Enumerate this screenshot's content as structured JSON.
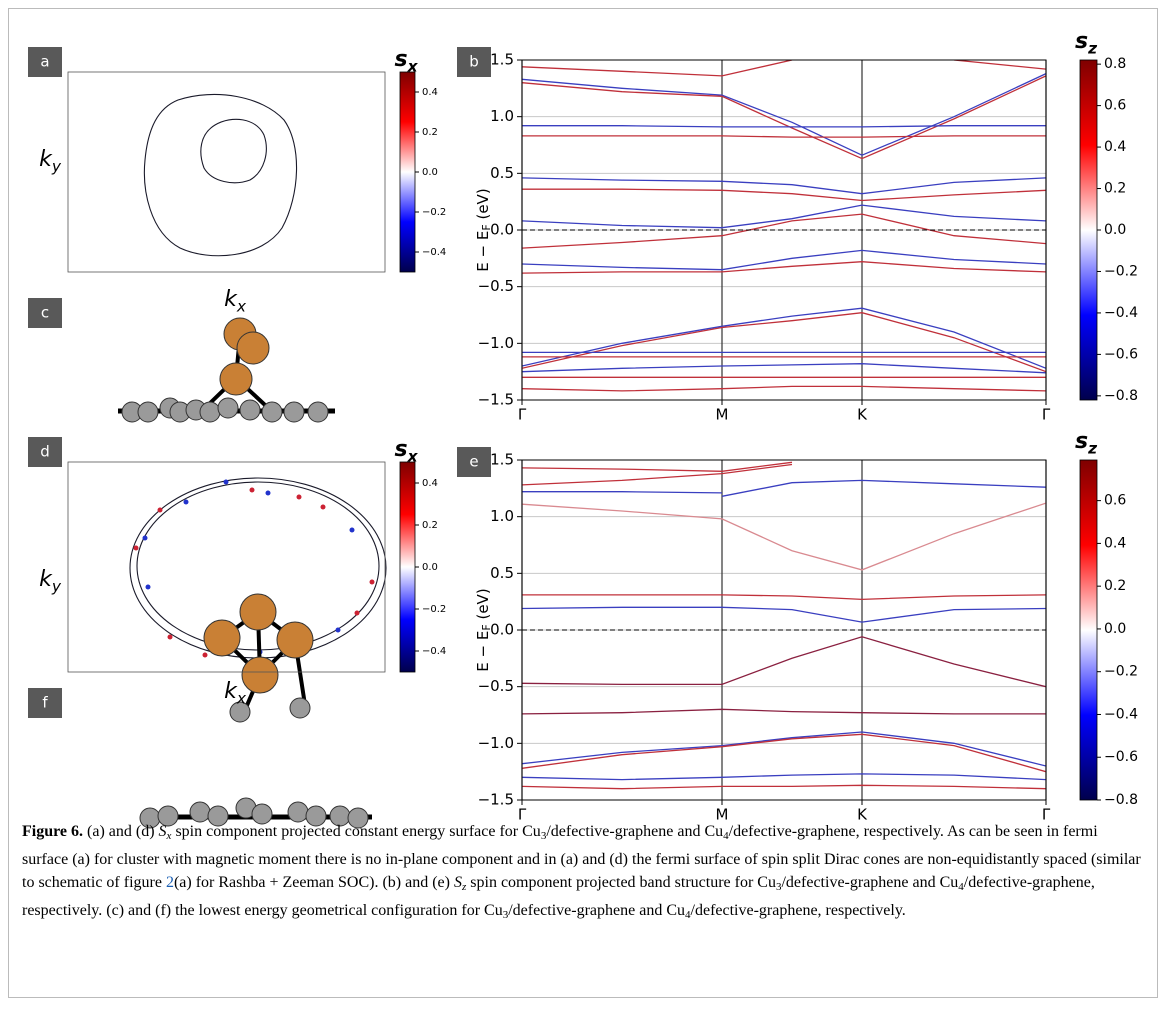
{
  "panel_labels": [
    "a",
    "b",
    "c",
    "d",
    "e",
    "f"
  ],
  "chart_data": [
    {
      "type": "fermi-surface",
      "xlabel": {
        "base": "k",
        "sub": "x"
      },
      "ylabel": {
        "base": "k",
        "sub": "y"
      },
      "colorbar": {
        "label": {
          "base": "s",
          "sub": "x"
        },
        "lim": [
          -0.5,
          0.5
        ],
        "ticks": [
          0.4,
          0.2,
          {
            "value": 0,
            "label": "0.0"
          },
          {
            "value": -0.2,
            "label": "−0.2"
          },
          {
            "value": -0.4,
            "label": "−0.4"
          }
        ]
      }
    },
    {
      "type": "line",
      "ylabel": [
        "E − E",
        "F",
        " (eV)"
      ],
      "x": [
        0,
        0.5,
        1,
        1.35,
        1.7,
        2.16,
        2.62
      ],
      "xlim": [
        0,
        2.62
      ],
      "xticks": [
        {
          "value": 0,
          "label": "Γ"
        },
        {
          "value": 1,
          "label": "M"
        },
        {
          "value": 1.7,
          "label": "K"
        },
        {
          "value": 2.62,
          "label": "Γ"
        }
      ],
      "ylim": [
        -1.5,
        1.5
      ],
      "yticks": [
        1.5,
        {
          "value": 1,
          "label": "1.0"
        },
        0.5,
        {
          "value": 0,
          "label": "0.0"
        },
        {
          "value": -0.5,
          "label": "−0.5"
        },
        {
          "value": -1,
          "label": "−1.0"
        },
        {
          "value": -1.5,
          "label": "−1.5"
        }
      ],
      "grid": true,
      "fermi_level": 0,
      "series": [
        {
          "color": "#c0303a",
          "values": [
            1.44,
            1.4,
            1.36,
            1.5,
            null,
            1.5,
            1.42
          ]
        },
        {
          "color": "#3a3fc0",
          "values": [
            1.33,
            1.25,
            1.19,
            0.95,
            0.66,
            1.0,
            1.38
          ]
        },
        {
          "color": "#c0303a",
          "values": [
            1.3,
            1.22,
            1.18,
            0.9,
            0.63,
            0.98,
            1.36
          ]
        },
        {
          "color": "#3a3fc0",
          "values": [
            0.92,
            0.92,
            0.91,
            0.91,
            0.91,
            0.92,
            0.92
          ]
        },
        {
          "color": "#c0303a",
          "values": [
            0.83,
            0.83,
            0.83,
            0.82,
            0.82,
            0.83,
            0.83
          ]
        },
        {
          "color": "#3a3fc0",
          "values": [
            0.46,
            0.44,
            0.43,
            0.4,
            0.32,
            0.42,
            0.46
          ]
        },
        {
          "color": "#c0303a",
          "values": [
            0.36,
            0.36,
            0.35,
            0.32,
            0.26,
            0.31,
            0.35
          ]
        },
        {
          "color": "#3a3fc0",
          "values": [
            0.08,
            0.04,
            0.02,
            0.1,
            0.22,
            0.12,
            0.08
          ]
        },
        {
          "color": "#c0303a",
          "values": [
            -0.16,
            -0.11,
            -0.05,
            0.08,
            0.14,
            -0.05,
            -0.12
          ]
        },
        {
          "color": "#3a3fc0",
          "values": [
            -0.3,
            -0.33,
            -0.35,
            -0.25,
            -0.18,
            -0.26,
            -0.3
          ]
        },
        {
          "color": "#c0303a",
          "values": [
            -0.38,
            -0.37,
            -0.37,
            -0.32,
            -0.28,
            -0.34,
            -0.37
          ]
        },
        {
          "color": "#3a3fc0",
          "values": [
            -1.2,
            -1.0,
            -0.85,
            -0.76,
            -0.69,
            -0.9,
            -1.22
          ]
        },
        {
          "color": "#c0303a",
          "values": [
            -1.22,
            -1.02,
            -0.86,
            -0.8,
            -0.73,
            -0.95,
            -1.25
          ]
        },
        {
          "color": "#3a3fc0",
          "values": [
            -1.08,
            -1.08,
            -1.08,
            -1.08,
            -1.08,
            -1.08,
            -1.08
          ]
        },
        {
          "color": "#c0303a",
          "values": [
            -1.12,
            -1.12,
            -1.12,
            -1.12,
            -1.12,
            -1.12,
            -1.12
          ]
        },
        {
          "color": "#3a3fc0",
          "values": [
            -1.25,
            -1.22,
            -1.2,
            -1.19,
            -1.18,
            -1.22,
            -1.26
          ]
        },
        {
          "color": "#c0303a",
          "values": [
            -1.3,
            -1.3,
            -1.3,
            -1.3,
            -1.3,
            -1.3,
            -1.3
          ]
        },
        {
          "color": "#c0303a",
          "values": [
            -1.4,
            -1.42,
            -1.4,
            -1.38,
            -1.38,
            -1.4,
            -1.42
          ]
        }
      ],
      "colorbar": {
        "label": {
          "base": "s",
          "sub": "z"
        },
        "lim": [
          -0.82,
          0.82
        ],
        "ticks": [
          0.8,
          0.6,
          0.4,
          0.2,
          {
            "value": 0,
            "label": "0.0"
          },
          {
            "value": -0.2,
            "label": "−0.2"
          },
          {
            "value": -0.4,
            "label": "−0.4"
          },
          {
            "value": -0.6,
            "label": "−0.6"
          },
          {
            "value": -0.8,
            "label": "−0.8"
          }
        ]
      }
    },
    {
      "type": "fermi-surface",
      "xlabel": {
        "base": "k",
        "sub": "x"
      },
      "ylabel": {
        "base": "k",
        "sub": "y"
      },
      "colorbar": {
        "label": {
          "base": "s",
          "sub": "x"
        },
        "lim": [
          -0.5,
          0.5
        ],
        "ticks": [
          0.4,
          0.2,
          {
            "value": 0,
            "label": "0.0"
          },
          {
            "value": -0.2,
            "label": "−0.2"
          },
          {
            "value": -0.4,
            "label": "−0.4"
          }
        ]
      }
    },
    {
      "type": "line",
      "ylabel": [
        "E − E",
        "F",
        " (eV)"
      ],
      "x": [
        0,
        0.5,
        1,
        1.35,
        1.7,
        2.16,
        2.62
      ],
      "xlim": [
        0,
        2.62
      ],
      "xticks": [
        {
          "value": 0,
          "label": "Γ"
        },
        {
          "value": 1,
          "label": "M"
        },
        {
          "value": 1.7,
          "label": "K"
        },
        {
          "value": 2.62,
          "label": "Γ"
        }
      ],
      "ylim": [
        -1.5,
        1.5
      ],
      "yticks": [
        1.5,
        {
          "value": 1,
          "label": "1.0"
        },
        0.5,
        {
          "value": 0,
          "label": "0.0"
        },
        {
          "value": -0.5,
          "label": "−0.5"
        },
        {
          "value": -1,
          "label": "−1.0"
        },
        {
          "value": -1.5,
          "label": "−1.5"
        }
      ],
      "grid": true,
      "fermi_level": 0,
      "series": [
        {
          "color": "#c0303a",
          "values": [
            1.43,
            1.42,
            1.4,
            1.48,
            null,
            null,
            null
          ]
        },
        {
          "color": "#c0303a",
          "values": [
            1.28,
            1.32,
            1.38,
            1.46,
            null,
            null,
            null
          ]
        },
        {
          "color": "#3a3fc0",
          "values": [
            null,
            null,
            1.18,
            1.3,
            1.32,
            1.29,
            1.26
          ]
        },
        {
          "color": "#3a3fc0",
          "values": [
            1.22,
            1.22,
            1.21,
            null,
            null,
            null,
            null
          ]
        },
        {
          "color": "#d98a90",
          "values": [
            1.11,
            1.05,
            0.98,
            0.7,
            0.53,
            0.85,
            1.12
          ]
        },
        {
          "color": "#c0303a",
          "values": [
            0.31,
            0.31,
            0.31,
            0.3,
            0.27,
            0.3,
            0.31
          ]
        },
        {
          "color": "#3a3fc0",
          "values": [
            0.19,
            0.2,
            0.2,
            0.18,
            0.07,
            0.18,
            0.19
          ]
        },
        {
          "color": "#8a2040",
          "values": [
            -0.47,
            -0.48,
            -0.48,
            -0.25,
            -0.06,
            -0.3,
            -0.5
          ]
        },
        {
          "color": "#8a2040",
          "values": [
            -0.74,
            -0.73,
            -0.7,
            -0.72,
            -0.73,
            -0.74,
            -0.74
          ]
        },
        {
          "color": "#3a3fc0",
          "values": [
            -1.18,
            -1.08,
            -1.02,
            -0.95,
            -0.9,
            -1.0,
            -1.2
          ]
        },
        {
          "color": "#c0303a",
          "values": [
            -1.22,
            -1.1,
            -1.03,
            -0.96,
            -0.92,
            -1.02,
            -1.25
          ]
        },
        {
          "color": "#3a3fc0",
          "values": [
            -1.3,
            -1.32,
            -1.3,
            -1.28,
            -1.27,
            -1.28,
            -1.32
          ]
        },
        {
          "color": "#c0303a",
          "values": [
            -1.38,
            -1.4,
            -1.38,
            -1.38,
            -1.37,
            -1.38,
            -1.4
          ]
        }
      ],
      "colorbar": {
        "label": {
          "base": "s",
          "sub": "z"
        },
        "lim": [
          -0.8,
          0.79
        ],
        "ticks": [
          0.6,
          0.4,
          0.2,
          {
            "value": 0,
            "label": "0.0"
          },
          {
            "value": -0.2,
            "label": "−0.2"
          },
          {
            "value": -0.4,
            "label": "−0.4"
          },
          {
            "value": -0.6,
            "label": "−0.6"
          },
          {
            "value": -0.8,
            "label": "−0.8"
          }
        ]
      }
    }
  ],
  "caption": [
    {
      "text": "Figure 6.",
      "style": "bold"
    },
    {
      "text": " (a) and (d) "
    },
    {
      "text": "S",
      "style": "italic"
    },
    {
      "text": "x",
      "style": "sub-italic"
    },
    {
      "text": " spin component projected constant energy surface for Cu"
    },
    {
      "text": "3",
      "style": "sub"
    },
    {
      "text": "/defective-graphene and Cu"
    },
    {
      "text": "4",
      "style": "sub"
    },
    {
      "text": "/defective-graphene, respectively. As can be seen in fermi surface (a) for cluster with magnetic moment there is no in-plane component and in (a) and (d) the fermi surface of spin split Dirac cones are non-equidistantly spaced (similar to schematic of figure "
    },
    {
      "text": "2",
      "style": "link"
    },
    {
      "text": "(a) for Rashba + Zeeman SOC). (b) and (e) "
    },
    {
      "text": "S",
      "style": "italic"
    },
    {
      "text": "z",
      "style": "sub-italic"
    },
    {
      "text": " spin component projected band structure for Cu"
    },
    {
      "text": "3",
      "style": "sub"
    },
    {
      "text": "/defective-graphene and Cu"
    },
    {
      "text": "4",
      "style": "sub"
    },
    {
      "text": "/defective-graphene, respectively. (c) and (f) the lowest energy geometrical configuration for Cu"
    },
    {
      "text": "3",
      "style": "sub"
    },
    {
      "text": "/defective-graphene and Cu"
    },
    {
      "text": "4",
      "style": "sub"
    },
    {
      "text": "/defective-graphene, respectively."
    }
  ]
}
